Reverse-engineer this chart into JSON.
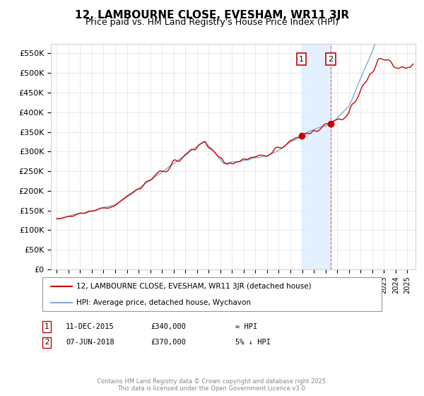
{
  "title": "12, LAMBOURNE CLOSE, EVESHAM, WR11 3JR",
  "subtitle": "Price paid vs. HM Land Registry's House Price Index (HPI)",
  "ylim": [
    0,
    575000
  ],
  "yticks": [
    0,
    50000,
    100000,
    150000,
    200000,
    250000,
    300000,
    350000,
    400000,
    450000,
    500000,
    550000
  ],
  "ytick_labels": [
    "£0",
    "£50K",
    "£100K",
    "£150K",
    "£200K",
    "£250K",
    "£300K",
    "£350K",
    "£400K",
    "£450K",
    "£500K",
    "£550K"
  ],
  "background_color": "#ffffff",
  "grid_color": "#e0e0e0",
  "title_fontsize": 11,
  "subtitle_fontsize": 9,
  "legend_entry1": "12, LAMBOURNE CLOSE, EVESHAM, WR11 3JR (detached house)",
  "legend_entry2": "HPI: Average price, detached house, Wychavon",
  "line1_color": "#cc0000",
  "line2_color": "#88aacc",
  "shade_color": "#ddeeff",
  "marker1_date": 2015.94,
  "marker1_price": 340000,
  "marker2_date": 2018.44,
  "marker2_price": 370000,
  "footer": "Contains HM Land Registry data © Crown copyright and database right 2025.\nThis data is licensed under the Open Government Licence v3.0.",
  "xstart": 1994.5,
  "xend": 2025.7
}
